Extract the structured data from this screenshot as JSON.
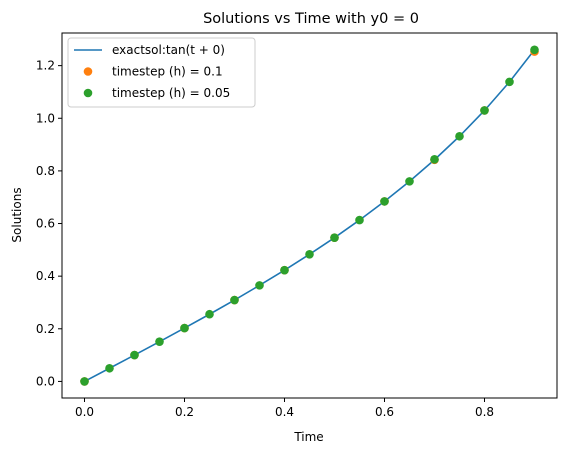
{
  "chart_data": {
    "type": "line",
    "title": "Solutions vs Time with y0 = 0",
    "xlabel": "Time",
    "ylabel": "Solutions",
    "xlim": [
      -0.045,
      0.945
    ],
    "ylim": [
      -0.063,
      1.324
    ],
    "xticks": [
      0.0,
      0.2,
      0.4,
      0.6,
      0.8
    ],
    "xtick_labels": [
      "0.0",
      "0.2",
      "0.4",
      "0.6",
      "0.8"
    ],
    "yticks": [
      0.0,
      0.2,
      0.4,
      0.6,
      0.8,
      1.0,
      1.2
    ],
    "ytick_labels": [
      "0.0",
      "0.2",
      "0.4",
      "0.6",
      "0.8",
      "1.0",
      "1.2"
    ],
    "grid": false,
    "legend_position": "top-left",
    "series": [
      {
        "name": "exactsol:tan(t + 0)",
        "kind": "line",
        "color": "#1f77b4",
        "x": [
          0.0,
          0.05,
          0.1,
          0.15,
          0.2,
          0.25,
          0.3,
          0.35,
          0.4,
          0.45,
          0.5,
          0.55,
          0.6,
          0.65,
          0.7,
          0.75,
          0.8,
          0.85,
          0.9
        ],
        "y": [
          0.0,
          0.05,
          0.1003,
          0.1511,
          0.2027,
          0.2553,
          0.3093,
          0.365,
          0.4228,
          0.4831,
          0.5463,
          0.6131,
          0.6841,
          0.7602,
          0.8423,
          0.9316,
          1.0296,
          1.1383,
          1.2602
        ]
      },
      {
        "name": "timestep (h) = 0.1",
        "kind": "scatter",
        "color": "#ff7f0e",
        "x": [
          0.0,
          0.1,
          0.2,
          0.3,
          0.4,
          0.5,
          0.6,
          0.7,
          0.8,
          0.9
        ],
        "y": [
          0.0,
          0.1003,
          0.2027,
          0.3093,
          0.4228,
          0.5463,
          0.6841,
          0.8422,
          1.0296,
          1.2533
        ]
      },
      {
        "name": "timestep (h) = 0.05",
        "kind": "scatter",
        "color": "#2ca02c",
        "x": [
          0.0,
          0.05,
          0.1,
          0.15,
          0.2,
          0.25,
          0.3,
          0.35,
          0.4,
          0.45,
          0.5,
          0.55,
          0.6,
          0.65,
          0.7,
          0.75,
          0.8,
          0.85,
          0.9
        ],
        "y": [
          0.0,
          0.05,
          0.1003,
          0.1511,
          0.2027,
          0.2553,
          0.3093,
          0.365,
          0.4228,
          0.4831,
          0.5463,
          0.6131,
          0.6841,
          0.7602,
          0.8439,
          0.9316,
          1.0296,
          1.1383,
          1.2602
        ]
      }
    ]
  }
}
